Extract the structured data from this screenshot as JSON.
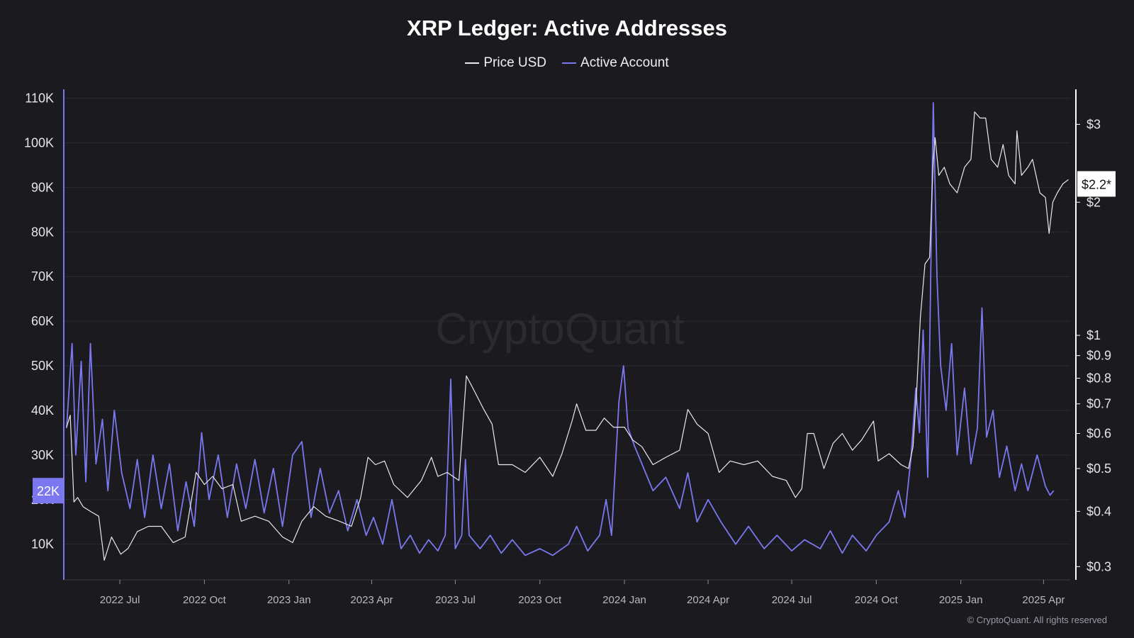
{
  "page": {
    "title": "XRP Ledger: Active Addresses",
    "watermark": "CryptoQuant",
    "footer": "© CryptoQuant. All rights reserved",
    "colors": {
      "background": "#1a1a1f",
      "price": "#e8e8ee",
      "active": "#7b77ee",
      "grid": "#2b2b33"
    }
  },
  "legend": [
    {
      "label": "Price USD",
      "color": "#e8e8ee"
    },
    {
      "label": "Active Account",
      "color": "#7b77ee"
    }
  ],
  "chart_data": {
    "type": "line",
    "title": "XRP Ledger: Active Addresses",
    "x_range": [
      "2022-05-01",
      "2025-04-30"
    ],
    "x_ticks": [
      {
        "date": "2022-07-01",
        "label": "2022 Jul"
      },
      {
        "date": "2022-10-01",
        "label": "2022 Oct"
      },
      {
        "date": "2023-01-01",
        "label": "2023 Jan"
      },
      {
        "date": "2023-04-01",
        "label": "2023 Apr"
      },
      {
        "date": "2023-07-01",
        "label": "2023 Jul"
      },
      {
        "date": "2023-10-01",
        "label": "2023 Oct"
      },
      {
        "date": "2024-01-01",
        "label": "2024 Jan"
      },
      {
        "date": "2024-04-01",
        "label": "2024 Apr"
      },
      {
        "date": "2024-07-01",
        "label": "2024 Jul"
      },
      {
        "date": "2024-10-01",
        "label": "2024 Oct"
      },
      {
        "date": "2025-01-01",
        "label": "2025 Jan"
      },
      {
        "date": "2025-04-01",
        "label": "2025 Apr"
      }
    ],
    "y_left": {
      "ylim": [
        2000,
        112000
      ],
      "ticks": [
        {
          "v": 10000,
          "label": "10K"
        },
        {
          "v": 20000,
          "label": "20K"
        },
        {
          "v": 30000,
          "label": "30K"
        },
        {
          "v": 40000,
          "label": "40K"
        },
        {
          "v": 50000,
          "label": "50K"
        },
        {
          "v": 60000,
          "label": "60K"
        },
        {
          "v": 70000,
          "label": "70K"
        },
        {
          "v": 80000,
          "label": "80K"
        },
        {
          "v": 90000,
          "label": "90K"
        },
        {
          "v": 100000,
          "label": "100K"
        },
        {
          "v": 110000,
          "label": "110K"
        }
      ],
      "current_badge": "22K",
      "current_value": 22000
    },
    "y_right": {
      "scale": "log",
      "ylim": [
        0.28,
        3.6
      ],
      "ticks": [
        {
          "v": 0.3,
          "label": "$0.3"
        },
        {
          "v": 0.4,
          "label": "$0.4"
        },
        {
          "v": 0.5,
          "label": "$0.5"
        },
        {
          "v": 0.6,
          "label": "$0.6"
        },
        {
          "v": 0.7,
          "label": "$0.7"
        },
        {
          "v": 0.8,
          "label": "$0.8"
        },
        {
          "v": 0.9,
          "label": "$0.9"
        },
        {
          "v": 1,
          "label": "$1"
        },
        {
          "v": 2,
          "label": "$2"
        },
        {
          "v": 3,
          "label": "$3"
        }
      ],
      "current_badge": "$2.2*",
      "current_value": 2.2
    },
    "series": [
      {
        "name": "Active Account",
        "axis": "left",
        "color": "#7b77ee",
        "points": [
          [
            "2022-05-04",
            36000
          ],
          [
            "2022-05-10",
            55000
          ],
          [
            "2022-05-14",
            30000
          ],
          [
            "2022-05-20",
            51000
          ],
          [
            "2022-05-25",
            24000
          ],
          [
            "2022-05-30",
            55000
          ],
          [
            "2022-06-05",
            28000
          ],
          [
            "2022-06-12",
            38000
          ],
          [
            "2022-06-18",
            22000
          ],
          [
            "2022-06-25",
            40000
          ],
          [
            "2022-07-03",
            26000
          ],
          [
            "2022-07-12",
            18000
          ],
          [
            "2022-07-20",
            29000
          ],
          [
            "2022-07-28",
            16000
          ],
          [
            "2022-08-06",
            30000
          ],
          [
            "2022-08-15",
            18000
          ],
          [
            "2022-08-24",
            28000
          ],
          [
            "2022-09-02",
            13000
          ],
          [
            "2022-09-11",
            24000
          ],
          [
            "2022-09-20",
            14000
          ],
          [
            "2022-09-28",
            35000
          ],
          [
            "2022-10-06",
            20000
          ],
          [
            "2022-10-16",
            30000
          ],
          [
            "2022-10-26",
            16000
          ],
          [
            "2022-11-05",
            28000
          ],
          [
            "2022-11-15",
            18000
          ],
          [
            "2022-11-25",
            29000
          ],
          [
            "2022-12-05",
            17000
          ],
          [
            "2022-12-15",
            27000
          ],
          [
            "2022-12-25",
            14000
          ],
          [
            "2023-01-05",
            30000
          ],
          [
            "2023-01-15",
            33000
          ],
          [
            "2023-01-25",
            16000
          ],
          [
            "2023-02-04",
            27000
          ],
          [
            "2023-02-14",
            17000
          ],
          [
            "2023-02-24",
            22000
          ],
          [
            "2023-03-06",
            13000
          ],
          [
            "2023-03-16",
            20000
          ],
          [
            "2023-03-26",
            12000
          ],
          [
            "2023-04-03",
            16000
          ],
          [
            "2023-04-13",
            10000
          ],
          [
            "2023-04-23",
            20000
          ],
          [
            "2023-05-03",
            9000
          ],
          [
            "2023-05-13",
            12000
          ],
          [
            "2023-05-23",
            8000
          ],
          [
            "2023-06-02",
            11000
          ],
          [
            "2023-06-12",
            8500
          ],
          [
            "2023-06-20",
            12000
          ],
          [
            "2023-06-26",
            47000
          ],
          [
            "2023-07-01",
            9000
          ],
          [
            "2023-07-08",
            12000
          ],
          [
            "2023-07-12",
            29000
          ],
          [
            "2023-07-16",
            12000
          ],
          [
            "2023-07-28",
            9000
          ],
          [
            "2023-08-08",
            12000
          ],
          [
            "2023-08-20",
            8000
          ],
          [
            "2023-09-01",
            11000
          ],
          [
            "2023-09-15",
            7500
          ],
          [
            "2023-10-01",
            9000
          ],
          [
            "2023-10-15",
            7500
          ],
          [
            "2023-11-01",
            10000
          ],
          [
            "2023-11-10",
            14000
          ],
          [
            "2023-11-22",
            8500
          ],
          [
            "2023-12-05",
            12000
          ],
          [
            "2023-12-12",
            20000
          ],
          [
            "2023-12-18",
            12000
          ],
          [
            "2023-12-26",
            42000
          ],
          [
            "2023-12-31",
            50000
          ],
          [
            "2024-01-05",
            36000
          ],
          [
            "2024-01-12",
            32000
          ],
          [
            "2024-01-20",
            28000
          ],
          [
            "2024-02-01",
            22000
          ],
          [
            "2024-02-15",
            25000
          ],
          [
            "2024-03-01",
            18000
          ],
          [
            "2024-03-10",
            26000
          ],
          [
            "2024-03-20",
            15000
          ],
          [
            "2024-04-01",
            20000
          ],
          [
            "2024-04-15",
            15000
          ],
          [
            "2024-05-01",
            10000
          ],
          [
            "2024-05-15",
            14000
          ],
          [
            "2024-06-01",
            9000
          ],
          [
            "2024-06-15",
            12000
          ],
          [
            "2024-07-01",
            8500
          ],
          [
            "2024-07-15",
            11000
          ],
          [
            "2024-08-01",
            9000
          ],
          [
            "2024-08-12",
            13000
          ],
          [
            "2024-08-25",
            8000
          ],
          [
            "2024-09-05",
            12000
          ],
          [
            "2024-09-20",
            8500
          ],
          [
            "2024-10-01",
            12000
          ],
          [
            "2024-10-15",
            15000
          ],
          [
            "2024-10-25",
            22000
          ],
          [
            "2024-11-01",
            16000
          ],
          [
            "2024-11-08",
            30000
          ],
          [
            "2024-11-13",
            45000
          ],
          [
            "2024-11-17",
            35000
          ],
          [
            "2024-11-21",
            58000
          ],
          [
            "2024-11-26",
            25000
          ],
          [
            "2024-12-02",
            109000
          ],
          [
            "2024-12-06",
            70000
          ],
          [
            "2024-12-10",
            50000
          ],
          [
            "2024-12-16",
            40000
          ],
          [
            "2024-12-22",
            55000
          ],
          [
            "2024-12-28",
            30000
          ],
          [
            "2025-01-05",
            45000
          ],
          [
            "2025-01-12",
            28000
          ],
          [
            "2025-01-19",
            36000
          ],
          [
            "2025-01-24",
            63000
          ],
          [
            "2025-01-29",
            34000
          ],
          [
            "2025-02-05",
            40000
          ],
          [
            "2025-02-12",
            25000
          ],
          [
            "2025-02-20",
            32000
          ],
          [
            "2025-03-01",
            22000
          ],
          [
            "2025-03-08",
            28000
          ],
          [
            "2025-03-15",
            22000
          ],
          [
            "2025-03-25",
            30000
          ],
          [
            "2025-04-03",
            23000
          ],
          [
            "2025-04-08",
            21000
          ],
          [
            "2025-04-12",
            22000
          ]
        ]
      },
      {
        "name": "Price USD",
        "axis": "right",
        "color": "#e8e8ee",
        "points": [
          [
            "2022-05-04",
            0.62
          ],
          [
            "2022-05-08",
            0.66
          ],
          [
            "2022-05-12",
            0.42
          ],
          [
            "2022-05-16",
            0.43
          ],
          [
            "2022-05-22",
            0.41
          ],
          [
            "2022-05-30",
            0.4
          ],
          [
            "2022-06-08",
            0.39
          ],
          [
            "2022-06-14",
            0.31
          ],
          [
            "2022-06-22",
            0.35
          ],
          [
            "2022-07-02",
            0.32
          ],
          [
            "2022-07-10",
            0.33
          ],
          [
            "2022-07-20",
            0.36
          ],
          [
            "2022-08-01",
            0.37
          ],
          [
            "2022-08-15",
            0.37
          ],
          [
            "2022-08-28",
            0.34
          ],
          [
            "2022-09-10",
            0.35
          ],
          [
            "2022-09-22",
            0.49
          ],
          [
            "2022-10-01",
            0.46
          ],
          [
            "2022-10-10",
            0.48
          ],
          [
            "2022-10-20",
            0.45
          ],
          [
            "2022-11-01",
            0.46
          ],
          [
            "2022-11-10",
            0.38
          ],
          [
            "2022-11-25",
            0.39
          ],
          [
            "2022-12-10",
            0.38
          ],
          [
            "2022-12-25",
            0.35
          ],
          [
            "2023-01-05",
            0.34
          ],
          [
            "2023-01-15",
            0.38
          ],
          [
            "2023-01-28",
            0.41
          ],
          [
            "2023-02-10",
            0.39
          ],
          [
            "2023-02-25",
            0.38
          ],
          [
            "2023-03-10",
            0.37
          ],
          [
            "2023-03-20",
            0.43
          ],
          [
            "2023-03-28",
            0.53
          ],
          [
            "2023-04-05",
            0.51
          ],
          [
            "2023-04-15",
            0.52
          ],
          [
            "2023-04-25",
            0.46
          ],
          [
            "2023-05-10",
            0.43
          ],
          [
            "2023-05-25",
            0.47
          ],
          [
            "2023-06-05",
            0.53
          ],
          [
            "2023-06-12",
            0.48
          ],
          [
            "2023-06-22",
            0.49
          ],
          [
            "2023-07-05",
            0.47
          ],
          [
            "2023-07-13",
            0.81
          ],
          [
            "2023-07-20",
            0.76
          ],
          [
            "2023-08-01",
            0.68
          ],
          [
            "2023-08-10",
            0.63
          ],
          [
            "2023-08-17",
            0.51
          ],
          [
            "2023-09-01",
            0.51
          ],
          [
            "2023-09-15",
            0.49
          ],
          [
            "2023-10-01",
            0.53
          ],
          [
            "2023-10-15",
            0.48
          ],
          [
            "2023-10-25",
            0.54
          ],
          [
            "2023-11-05",
            0.64
          ],
          [
            "2023-11-10",
            0.7
          ],
          [
            "2023-11-20",
            0.61
          ],
          [
            "2023-12-01",
            0.61
          ],
          [
            "2023-12-10",
            0.65
          ],
          [
            "2023-12-20",
            0.62
          ],
          [
            "2024-01-01",
            0.62
          ],
          [
            "2024-01-10",
            0.58
          ],
          [
            "2024-01-20",
            0.56
          ],
          [
            "2024-02-01",
            0.51
          ],
          [
            "2024-02-15",
            0.53
          ],
          [
            "2024-03-01",
            0.55
          ],
          [
            "2024-03-10",
            0.68
          ],
          [
            "2024-03-20",
            0.63
          ],
          [
            "2024-04-01",
            0.6
          ],
          [
            "2024-04-13",
            0.49
          ],
          [
            "2024-04-25",
            0.52
          ],
          [
            "2024-05-10",
            0.51
          ],
          [
            "2024-05-25",
            0.52
          ],
          [
            "2024-06-10",
            0.48
          ],
          [
            "2024-06-25",
            0.47
          ],
          [
            "2024-07-05",
            0.43
          ],
          [
            "2024-07-12",
            0.45
          ],
          [
            "2024-07-18",
            0.6
          ],
          [
            "2024-07-25",
            0.6
          ],
          [
            "2024-08-05",
            0.5
          ],
          [
            "2024-08-15",
            0.57
          ],
          [
            "2024-08-25",
            0.6
          ],
          [
            "2024-09-05",
            0.55
          ],
          [
            "2024-09-15",
            0.58
          ],
          [
            "2024-09-28",
            0.64
          ],
          [
            "2024-10-03",
            0.52
          ],
          [
            "2024-10-15",
            0.54
          ],
          [
            "2024-10-28",
            0.51
          ],
          [
            "2024-11-05",
            0.5
          ],
          [
            "2024-11-10",
            0.56
          ],
          [
            "2024-11-14",
            0.75
          ],
          [
            "2024-11-18",
            1.1
          ],
          [
            "2024-11-23",
            1.45
          ],
          [
            "2024-11-28",
            1.5
          ],
          [
            "2024-12-02",
            2.5
          ],
          [
            "2024-12-04",
            2.8
          ],
          [
            "2024-12-08",
            2.3
          ],
          [
            "2024-12-14",
            2.4
          ],
          [
            "2024-12-20",
            2.2
          ],
          [
            "2024-12-28",
            2.1
          ],
          [
            "2025-01-05",
            2.4
          ],
          [
            "2025-01-12",
            2.5
          ],
          [
            "2025-01-16",
            3.2
          ],
          [
            "2025-01-22",
            3.1
          ],
          [
            "2025-01-28",
            3.1
          ],
          [
            "2025-02-03",
            2.5
          ],
          [
            "2025-02-10",
            2.4
          ],
          [
            "2025-02-16",
            2.7
          ],
          [
            "2025-02-22",
            2.3
          ],
          [
            "2025-03-01",
            2.2
          ],
          [
            "2025-03-03",
            2.9
          ],
          [
            "2025-03-08",
            2.3
          ],
          [
            "2025-03-15",
            2.4
          ],
          [
            "2025-03-20",
            2.5
          ],
          [
            "2025-03-28",
            2.1
          ],
          [
            "2025-04-03",
            2.05
          ],
          [
            "2025-04-07",
            1.7
          ],
          [
            "2025-04-11",
            2.0
          ],
          [
            "2025-04-16",
            2.1
          ],
          [
            "2025-04-22",
            2.2
          ],
          [
            "2025-04-28",
            2.25
          ]
        ]
      }
    ]
  }
}
